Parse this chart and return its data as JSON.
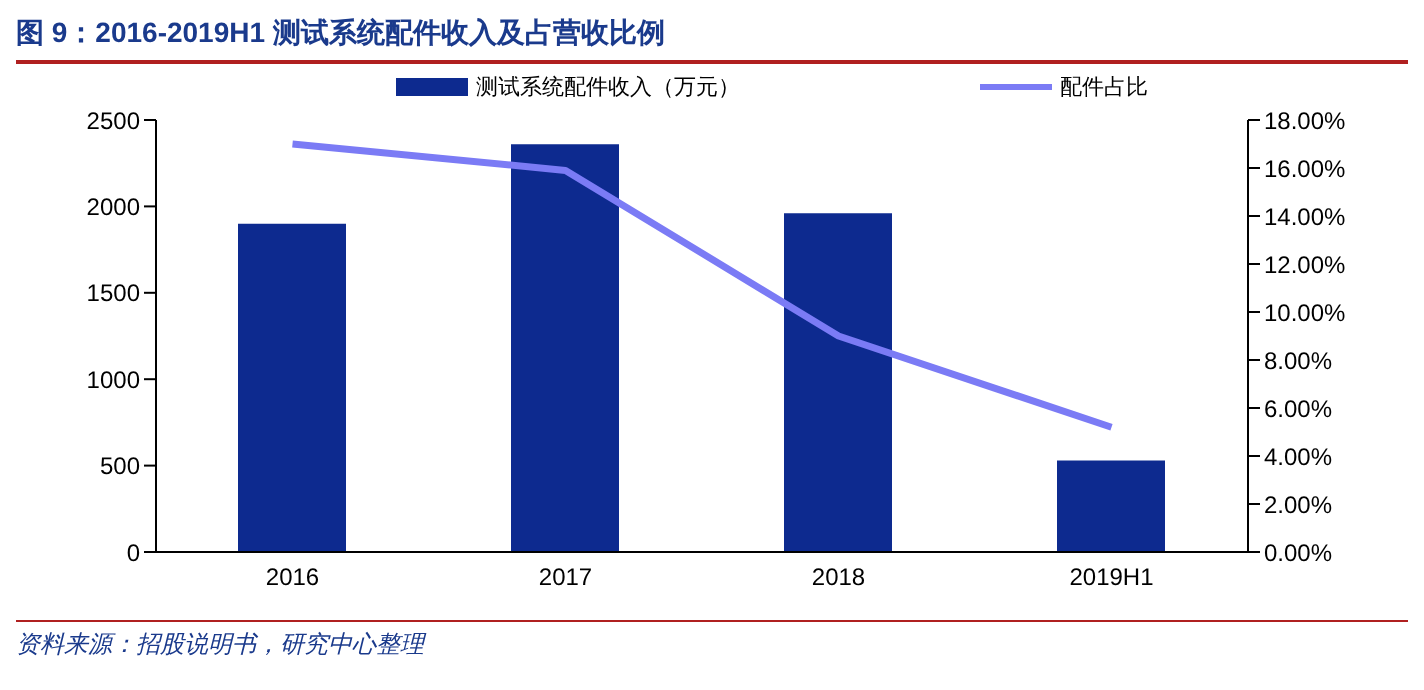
{
  "chart_data": {
    "type": "bar",
    "title": "图 9：2016-2019H1 测试系统配件收入及占营收比例",
    "categories": [
      "2016",
      "2017",
      "2018",
      "2019H1"
    ],
    "series": [
      {
        "name": "测试系统配件收入（万元）",
        "color": "#0d2a8f",
        "values": [
          1900,
          2360,
          1960,
          530
        ]
      },
      {
        "name": "配件占比",
        "type": "line",
        "axis": "y2",
        "color": "#7b7bf5",
        "values": [
          17.0,
          15.9,
          9.0,
          5.2
        ]
      }
    ],
    "ylim": [
      0,
      2500
    ],
    "yticks": [
      0,
      500,
      1000,
      1500,
      2000,
      2500
    ],
    "y2lim": [
      0,
      18
    ],
    "y2ticks": [
      {
        "value": 0,
        "label": "0.00%"
      },
      {
        "value": 2,
        "label": "2.00%"
      },
      {
        "value": 4,
        "label": "4.00%"
      },
      {
        "value": 6,
        "label": "6.00%"
      },
      {
        "value": 8,
        "label": "8.00%"
      },
      {
        "value": 10,
        "label": "10.00%"
      },
      {
        "value": 12,
        "label": "12.00%"
      },
      {
        "value": 14,
        "label": "14.00%"
      },
      {
        "value": 16,
        "label": "16.00%"
      },
      {
        "value": 18,
        "label": "18.00%"
      }
    ],
    "legend": "top",
    "marker": "none",
    "grid": false,
    "annotations": [
      "资料来源：招股说明书，研究中心整理"
    ]
  }
}
